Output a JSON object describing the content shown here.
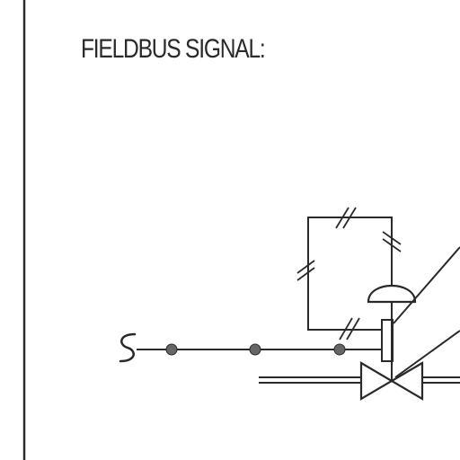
{
  "title": "FIELDBUS SIGNAL:",
  "colors": {
    "line": "#2a2a2a",
    "node_fill": "#666666",
    "background": "#ffffff"
  },
  "icons": [
    "fieldbus-signal-line",
    "diaphragm-actuator-icon",
    "control-valve-icon"
  ]
}
